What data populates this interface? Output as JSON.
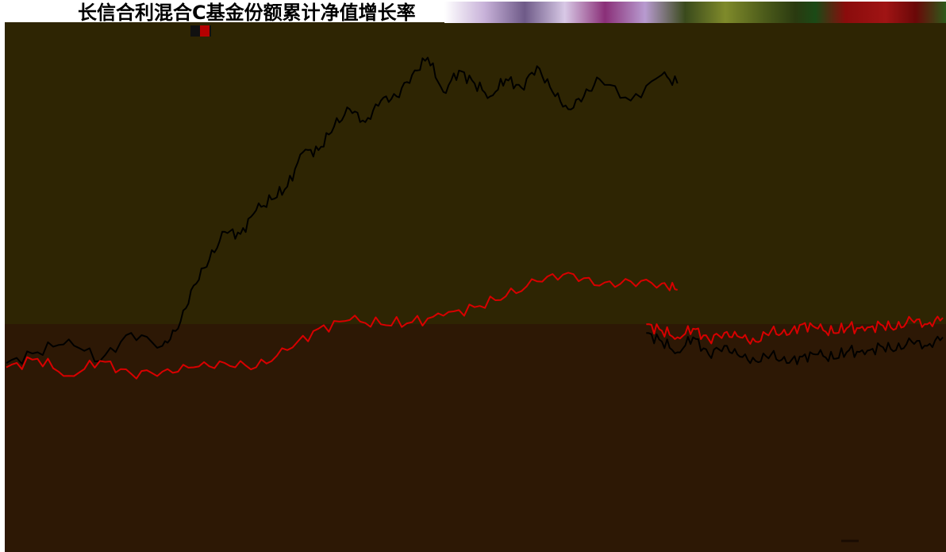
{
  "colors": {
    "background": "#ffffff",
    "plot_bg_upper": "#2e2503",
    "plot_bg_lower": "#2d1805",
    "series_black": "#000000",
    "series_red": "#d80000"
  },
  "chart_data": {
    "type": "line",
    "title": "长信合利混合C基金份额累计净值增长率",
    "xlabel": "",
    "ylabel": "",
    "grid": false,
    "legend_placement": "top-left",
    "x_range": [
      0,
      300
    ],
    "y_range": [
      -40,
      80
    ],
    "series": [
      {
        "color": "#000000",
        "x": [
          0,
          10,
          20,
          30,
          40,
          50,
          55,
          60,
          65,
          70,
          75,
          80,
          85,
          90,
          95,
          100,
          105,
          110,
          115,
          120,
          125,
          130,
          135,
          140,
          145,
          150,
          155,
          160,
          165,
          170,
          175,
          180,
          185,
          190,
          200,
          210,
          215
        ],
        "values": [
          3.0,
          5.5,
          8.5,
          3.5,
          10.0,
          7.0,
          11.0,
          21.0,
          27.0,
          33.5,
          33.0,
          38.5,
          41.0,
          44.0,
          52.0,
          52.5,
          58.0,
          62.0,
          59.0,
          64.0,
          65.0,
          70.0,
          74.0,
          66.0,
          71.0,
          68.0,
          65.0,
          69.0,
          67.0,
          72.0,
          66.0,
          62.0,
          65.0,
          69.0,
          64.0,
          70.0,
          68.0
        ],
        "x2": [
          205,
          210,
          215,
          220,
          225,
          230,
          235,
          240,
          245,
          250,
          255,
          260,
          265,
          270,
          275,
          280,
          285,
          290,
          295,
          300
        ],
        "values2": [
          10.0,
          8.0,
          5.5,
          9.0,
          5.0,
          7.0,
          4.5,
          3.5,
          5.0,
          3.0,
          4.5,
          5.0,
          4.0,
          6.0,
          5.0,
          7.0,
          6.0,
          8.0,
          7.0,
          9.0
        ]
      },
      {
        "color": "#d80000",
        "x": [
          0,
          10,
          20,
          30,
          40,
          50,
          60,
          70,
          80,
          90,
          100,
          110,
          120,
          130,
          140,
          150,
          160,
          170,
          180,
          190,
          200,
          210,
          215
        ],
        "values": [
          2.0,
          4.0,
          0.0,
          3.5,
          0.5,
          1.0,
          2.0,
          3.0,
          2.0,
          6.0,
          11.0,
          13.0,
          12.0,
          12.5,
          14.0,
          16.0,
          18.5,
          22.0,
          24.0,
          21.0,
          22.0,
          21.5,
          20.0
        ],
        "x2": [
          205,
          210,
          215,
          220,
          225,
          230,
          235,
          240,
          245,
          250,
          255,
          260,
          265,
          270,
          275,
          280,
          285,
          290,
          295,
          300
        ],
        "values2": [
          12.0,
          10.5,
          9.0,
          11.0,
          8.5,
          10.0,
          9.0,
          8.0,
          10.5,
          9.5,
          12.0,
          11.0,
          10.0,
          11.5,
          10.5,
          12.0,
          11.0,
          13.0,
          12.0,
          13.5
        ]
      }
    ]
  }
}
